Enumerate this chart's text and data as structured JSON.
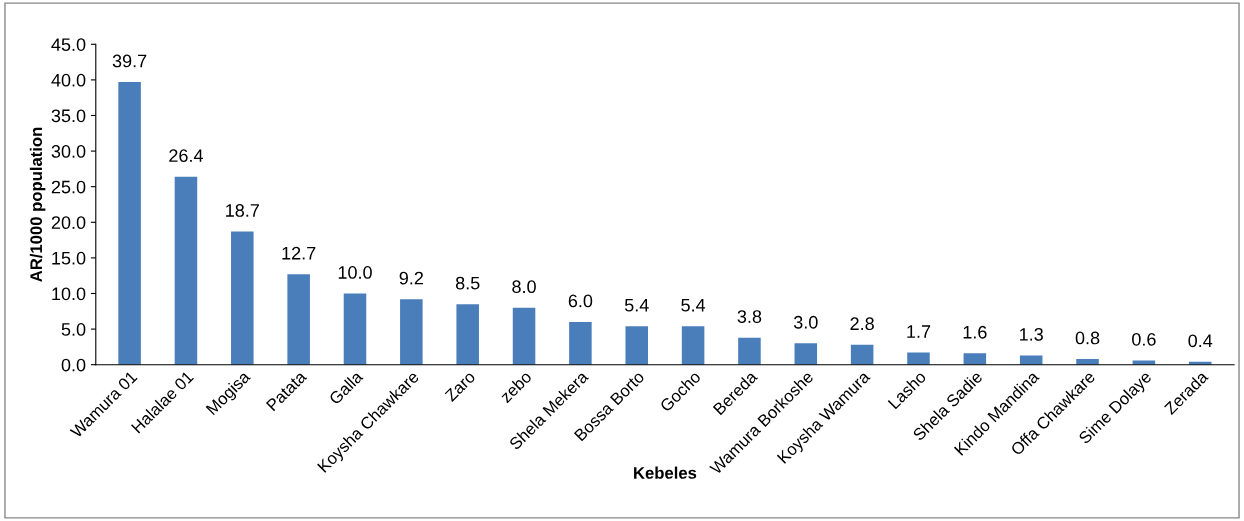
{
  "chart_data": {
    "type": "bar",
    "xlabel": "Kebeles",
    "ylabel": "AR/1000 population",
    "categories": [
      "Wamura 01",
      "Halalae 01",
      "Mogisa",
      "Patata",
      "Galla",
      "Koysha Chawkare",
      "Zaro",
      "zebo",
      "Shela Mekera",
      "Bossa Borto",
      "Gocho",
      "Bereda",
      "Wamura Borkoshe",
      "Koysha Wamura",
      "Lasho",
      "Shela Sadie",
      "Kindo Mandina",
      "Offa Chawkare",
      "Sime Dolaye",
      "Zerada"
    ],
    "values": [
      39.7,
      26.4,
      18.7,
      12.7,
      10.0,
      9.2,
      8.5,
      8.0,
      6.0,
      5.4,
      5.4,
      3.8,
      3.0,
      2.8,
      1.7,
      1.6,
      1.3,
      0.8,
      0.6,
      0.4
    ],
    "value_labels": [
      "39.7",
      "26.4",
      "18.7",
      "12.7",
      "10.0",
      "9.2",
      "8.5",
      "8.0",
      "6.0",
      "5.4",
      "5.4",
      "3.8",
      "3.0",
      "2.8",
      "1.7",
      "1.6",
      "1.3",
      "0.8",
      "0.6",
      "0.4"
    ],
    "color": "#4a7ebb",
    "ylim": [
      0,
      45
    ],
    "yticks": [
      {
        "value": 0,
        "label": "0.0"
      },
      {
        "value": 5,
        "label": "5.0"
      },
      {
        "value": 10,
        "label": "10.0"
      },
      {
        "value": 15,
        "label": "15.0"
      },
      {
        "value": 20,
        "label": "20.0"
      },
      {
        "value": 25,
        "label": "25.0"
      },
      {
        "value": 30,
        "label": "30.0"
      },
      {
        "value": 35,
        "label": "35.0"
      },
      {
        "value": 40,
        "label": "40.0"
      },
      {
        "value": 45,
        "label": "45.0"
      }
    ],
    "grid": false,
    "legend": false
  }
}
